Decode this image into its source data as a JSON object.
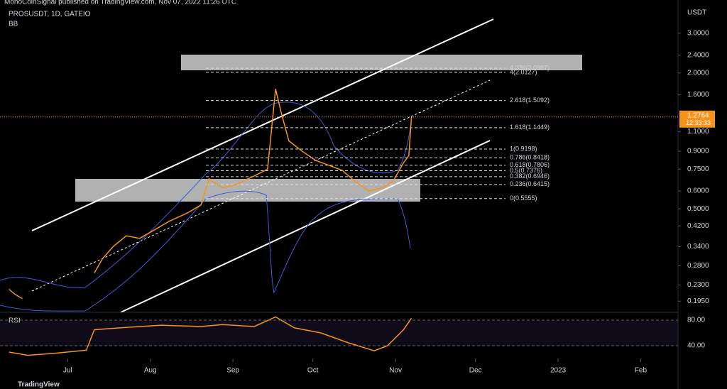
{
  "header": {
    "published": "MonoCoinSignal published on TradingView.com, Nov 07, 2022 11:26 UTC",
    "symbol": "PROSUSDT, 1D, GATEIO",
    "indicator": "BB",
    "footer": "TradingView"
  },
  "chart_data": [
    {
      "type": "line",
      "log_scale": true,
      "y_axis_title": "USDT",
      "xlim": [
        -25.4,
        229
      ],
      "xticks": [
        {
          "value": 0,
          "label": "Jul"
        },
        {
          "value": 31,
          "label": "Aug"
        },
        {
          "value": 62,
          "label": "Sep"
        },
        {
          "value": 92,
          "label": "Oct"
        },
        {
          "value": 123,
          "label": "Nov"
        },
        {
          "value": 153,
          "label": "Dec"
        },
        {
          "value": 184,
          "label": "2023"
        },
        {
          "value": 215,
          "label": "Feb"
        }
      ],
      "ylim": [
        0.174,
        4.21
      ],
      "yticks": [
        {
          "value": 3,
          "label": "3.0000"
        },
        {
          "value": 2.4,
          "label": "2.4000"
        },
        {
          "value": 2,
          "label": "2.0000"
        },
        {
          "value": 1.6,
          "label": "1.6000"
        },
        {
          "value": 1.1,
          "label": "1.1000"
        },
        {
          "value": 0.9,
          "label": "0.9000"
        },
        {
          "value": 0.75,
          "label": "0.7500"
        },
        {
          "value": 0.6,
          "label": "0.6000"
        },
        {
          "value": 0.5,
          "label": "0.5000"
        },
        {
          "value": 0.42,
          "label": "0.4200"
        },
        {
          "value": 0.34,
          "label": "0.3400"
        },
        {
          "value": 0.28,
          "label": "0.2800"
        },
        {
          "value": 0.23,
          "label": "0.2300"
        },
        {
          "value": 0.195,
          "label": "0.1950"
        }
      ],
      "x": [
        -22,
        -20,
        -17,
        7,
        10,
        13,
        17,
        22,
        27,
        32,
        38,
        45,
        50,
        53,
        58,
        63,
        70,
        75,
        78,
        80,
        83,
        88,
        93,
        98,
        103,
        108,
        113,
        118,
        122,
        126,
        128,
        129
      ],
      "series": [
        {
          "name": "PROSUSDT",
          "color": "#f7931a",
          "values": [
            0.22,
            0.21,
            0.2,
            null,
            0.26,
            0.3,
            0.34,
            0.38,
            0.37,
            0.4,
            0.44,
            0.48,
            0.52,
            0.68,
            0.62,
            0.64,
            0.7,
            0.75,
            1.7,
            1.35,
            1.0,
            0.9,
            0.82,
            0.78,
            0.74,
            0.66,
            0.6,
            0.62,
            0.66,
            0.8,
            0.86,
            1.28
          ]
        }
      ],
      "last_price": {
        "value": 1.2764,
        "label": "1.2764",
        "timer": "12:33:33"
      },
      "fib_levels": [
        {
          "label": "4.236(2.0987)",
          "value": 2.0987
        },
        {
          "label": "4(2.0127)",
          "value": 2.0127
        },
        {
          "label": "2.618(1.5092)",
          "value": 1.5092
        },
        {
          "label": "1.618(1.1449)",
          "value": 1.1449
        },
        {
          "label": "1(0.9198)",
          "value": 0.9198
        },
        {
          "label": "0.786(0.8418)",
          "value": 0.8418
        },
        {
          "label": "0.618(0.7806)",
          "value": 0.7806
        },
        {
          "label": "0.5(0.7376)",
          "value": 0.7376
        },
        {
          "label": "0.382(0.6946)",
          "value": 0.6946
        },
        {
          "label": "0.236(0.6415)",
          "value": 0.6415
        },
        {
          "label": "0(0.5555)",
          "value": 0.5555
        }
      ]
    },
    {
      "type": "line",
      "title": "RSI",
      "ylim": [
        20,
        92.2
      ],
      "yticks": [
        {
          "value": 80,
          "label": "80.00"
        },
        {
          "value": 40,
          "label": "40.00"
        }
      ],
      "x": [
        -22,
        -15,
        -5,
        7,
        10,
        20,
        35,
        50,
        58,
        70,
        78,
        85,
        95,
        105,
        115,
        120,
        126,
        129
      ],
      "series": [
        {
          "name": "RSI",
          "color": "#f7931a",
          "values": [
            30,
            25,
            28,
            33,
            65,
            68,
            72,
            70,
            73,
            70,
            85,
            68,
            60,
            45,
            32,
            40,
            65,
            83
          ]
        }
      ]
    }
  ]
}
